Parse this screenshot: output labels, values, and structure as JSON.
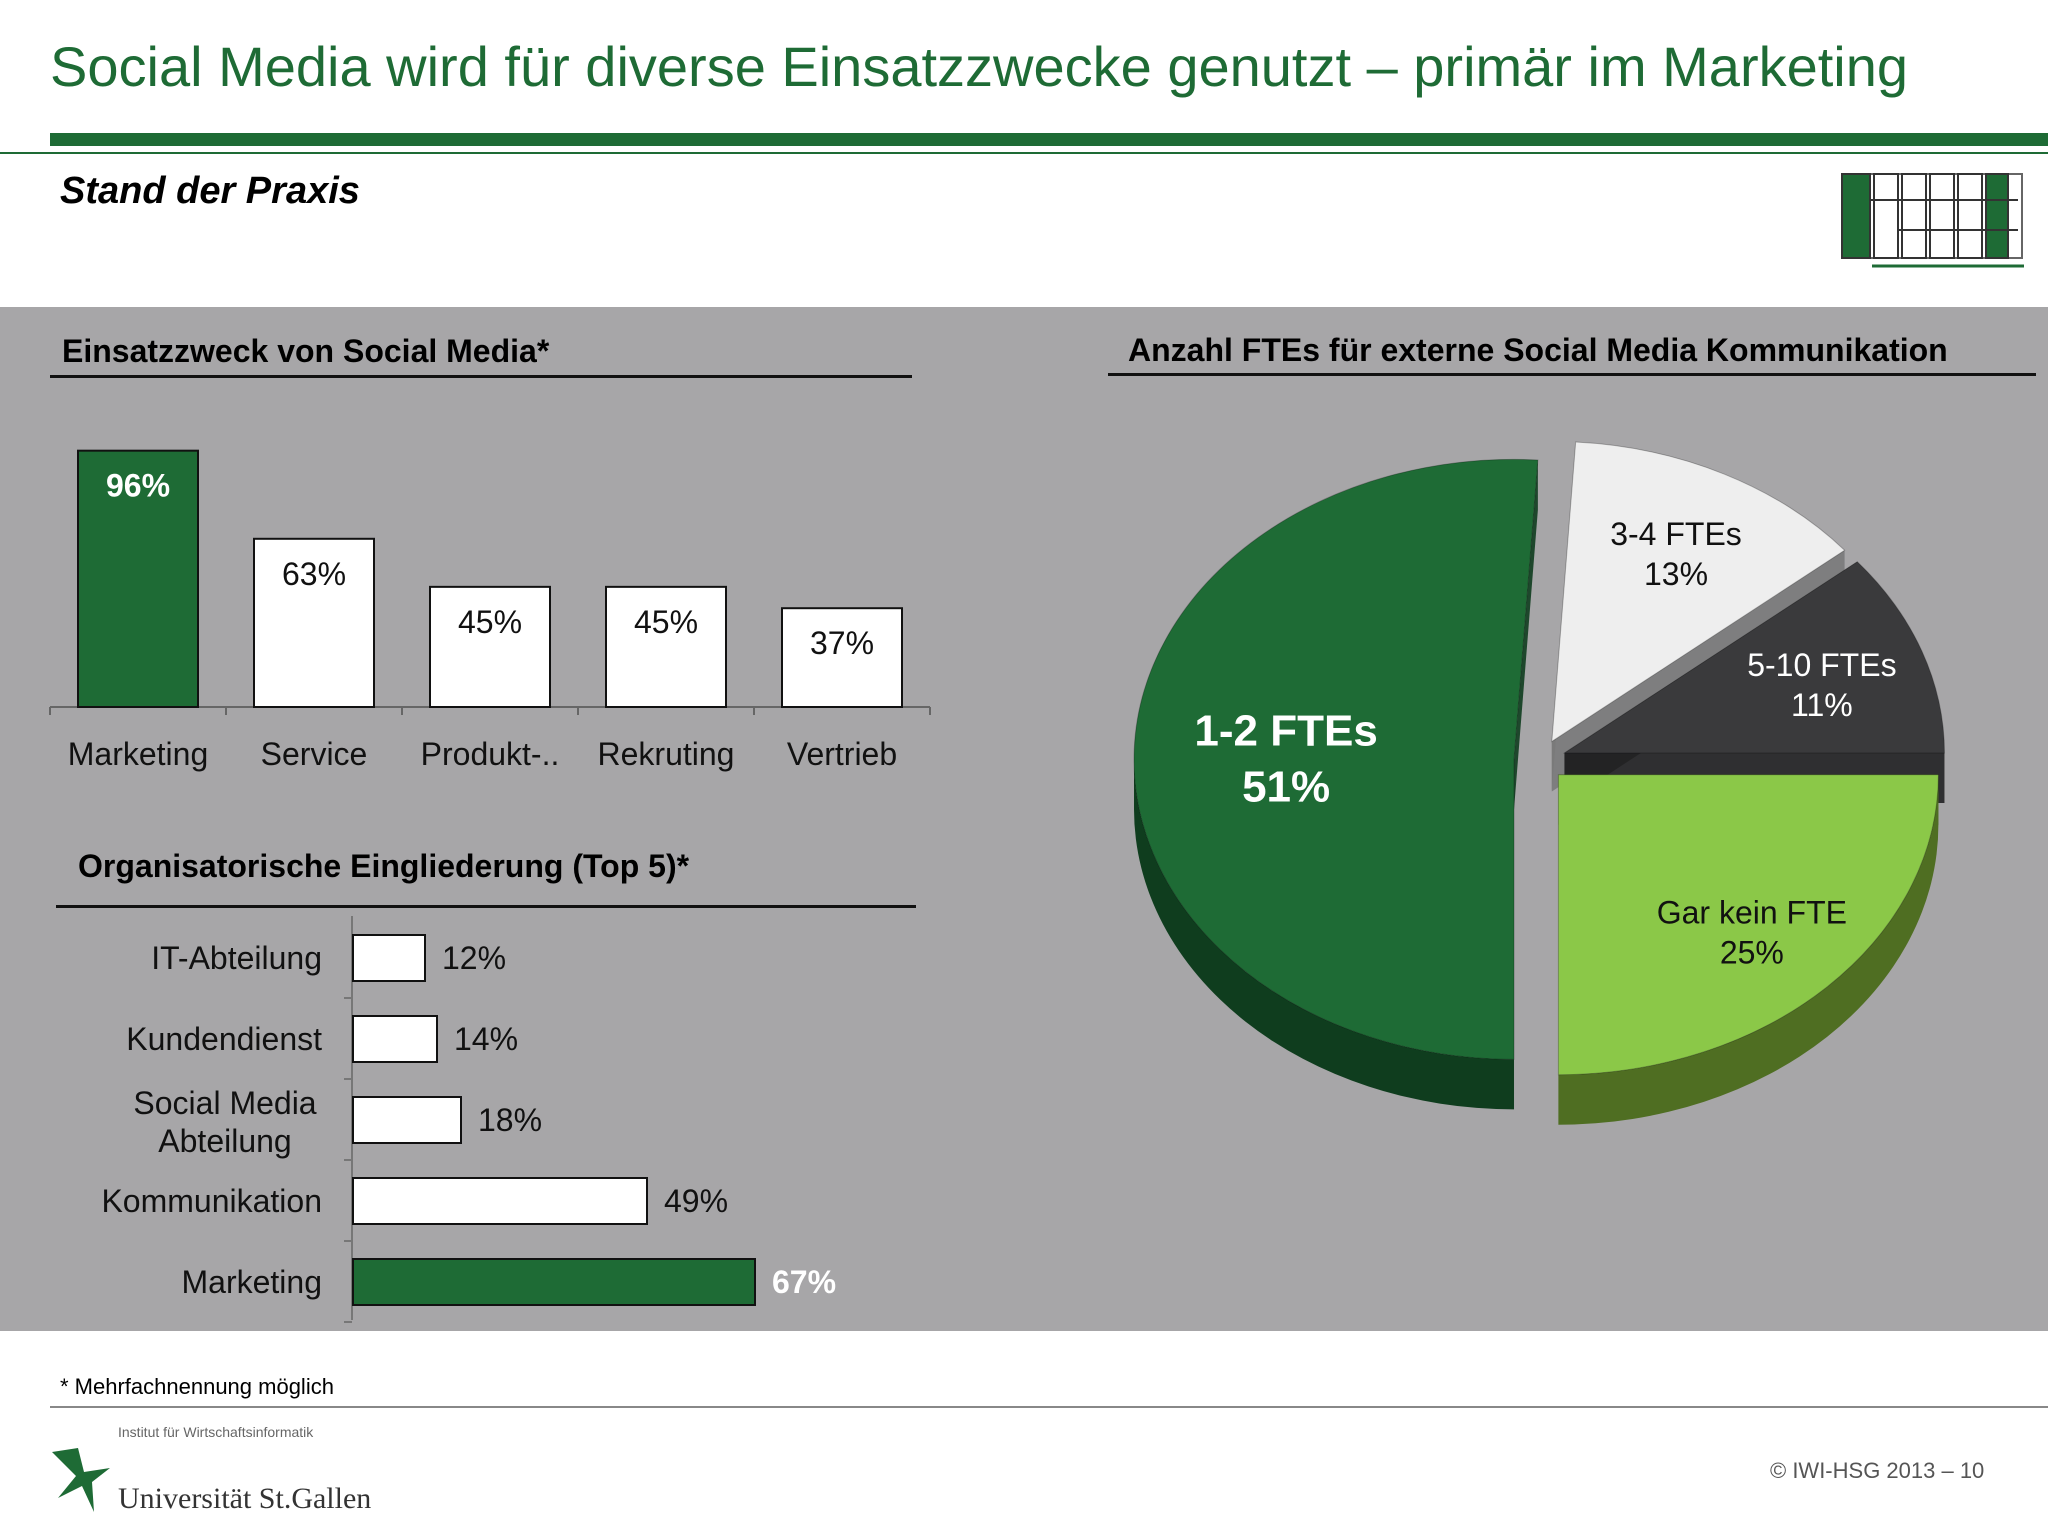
{
  "title": "Social Media wird für diverse Einsatzzwecke genutzt – primär im Marketing",
  "subtitle": "Stand der Praxis",
  "footnote": "* Mehrfachnennung möglich",
  "footer": {
    "institute": "Institut für Wirtschaftsinformatik",
    "university": "Universität St.Gallen",
    "copyright": "© IWI-HSG 2013 – 10"
  },
  "colors": {
    "brand_green": "#1e6b35",
    "panel_gray": "#a7a6a8",
    "light_green": "#8bc848",
    "dark_gray": "#3a3a3c",
    "light_gray": "#eeeeee"
  },
  "chart_data": [
    {
      "type": "bar",
      "title": "Einsatzzweck von Social Media*",
      "categories": [
        "Marketing",
        "Service",
        "Produkt-..",
        "Rekruting",
        "Vertrieb"
      ],
      "values": [
        96,
        63,
        45,
        45,
        37
      ],
      "value_labels": [
        "96%",
        "63%",
        "45%",
        "45%",
        "37%"
      ],
      "ylim": [
        0,
        100
      ],
      "highlight_index": 0
    },
    {
      "type": "bar",
      "orientation": "horizontal",
      "title": "Organisatorische Eingliederung (Top 5)*",
      "categories": [
        "IT-Abteilung",
        "Kundendienst",
        "Social Media Abteilung",
        "Kommunikation",
        "Marketing"
      ],
      "values": [
        12,
        14,
        18,
        49,
        67
      ],
      "value_labels": [
        "12%",
        "14%",
        "18%",
        "49%",
        "67%"
      ],
      "xlim": [
        0,
        100
      ],
      "highlight_index": 4
    },
    {
      "type": "pie",
      "title": "Anzahl FTEs für externe Social Media Kommunikation",
      "labels": [
        "1-2 FTEs",
        "3-4 FTEs",
        "5-10 FTEs",
        "Gar kein FTE"
      ],
      "values": [
        51,
        13,
        11,
        25
      ],
      "value_labels": [
        "51%",
        "13%",
        "11%",
        "25%"
      ],
      "colors": [
        "#1e6b35",
        "#eeeeee",
        "#3a3a3c",
        "#8bc848"
      ]
    }
  ]
}
